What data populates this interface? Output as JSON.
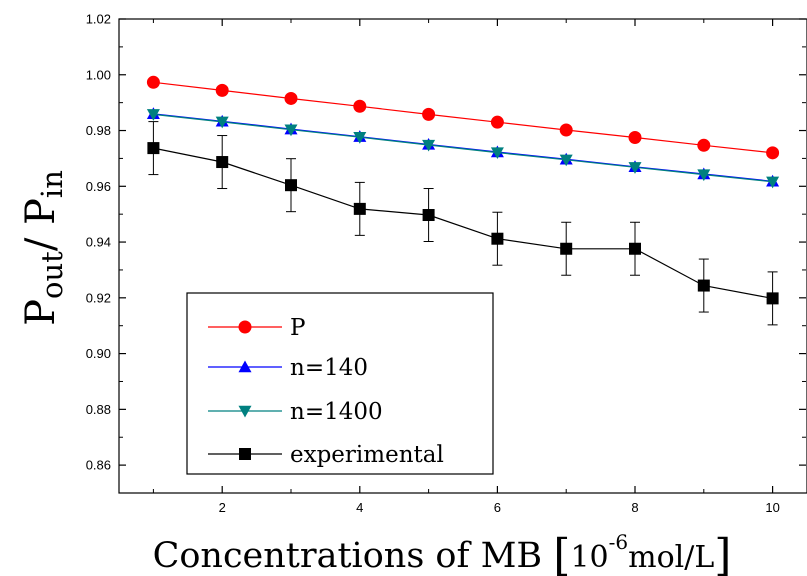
{
  "chart_data": {
    "type": "line",
    "xlabel_main": "Concentrations of MB ",
    "xlabel_unit_open": "[",
    "xlabel_unit_base": "10",
    "xlabel_unit_exp": "-6",
    "xlabel_unit_rest": "mol/L",
    "xlabel_unit_close": "]",
    "ylabel_top": "P",
    "ylabel_top_sub": "out",
    "ylabel_sep": "/ ",
    "ylabel_bottom": "P",
    "ylabel_bottom_sub": "in",
    "xlim": [
      0.5,
      10.5
    ],
    "ylim": [
      0.85,
      1.02
    ],
    "x_ticks": [
      2,
      4,
      6,
      8,
      10
    ],
    "x_tick_labels": [
      "2",
      "4",
      "6",
      "8",
      "10"
    ],
    "y_ticks": [
      0.86,
      0.88,
      0.9,
      0.92,
      0.94,
      0.96,
      0.98,
      1.0,
      1.02
    ],
    "y_tick_labels": [
      "0.86",
      "0.88",
      "0.90",
      "0.92",
      "0.94",
      "0.96",
      "0.98",
      "1.00",
      "1.02"
    ],
    "grid": false,
    "legend_position": "bottom-left",
    "x": [
      1,
      2,
      3,
      4,
      5,
      6,
      7,
      8,
      9,
      10
    ],
    "series": [
      {
        "name": "P",
        "marker": "circle",
        "color": "#ff0000",
        "line_color": "#ff0000",
        "values": [
          0.9973,
          0.9944,
          0.9915,
          0.9887,
          0.9858,
          0.983,
          0.9802,
          0.9775,
          0.9747,
          0.972
        ]
      },
      {
        "name": "n=140",
        "marker": "triangle-up",
        "color": "#0000ff",
        "line_color": "#0000ff",
        "values": [
          0.986,
          0.9833,
          0.9805,
          0.9778,
          0.975,
          0.9723,
          0.9697,
          0.967,
          0.9644,
          0.9618
        ]
      },
      {
        "name": "n=1400",
        "marker": "triangle-down",
        "color": "#008080",
        "line_color": "#008080",
        "values": [
          0.9858,
          0.9831,
          0.9803,
          0.9776,
          0.9748,
          0.9721,
          0.9695,
          0.9668,
          0.9642,
          0.9616
        ]
      },
      {
        "name": "experimental",
        "marker": "square",
        "color": "#000000",
        "line_color": "#000000",
        "values": [
          0.9737,
          0.9687,
          0.9604,
          0.9519,
          0.9497,
          0.9412,
          0.9376,
          0.9376,
          0.9244,
          0.9198
        ],
        "errors": [
          0.0095,
          0.0095,
          0.0095,
          0.0095,
          0.0095,
          0.0095,
          0.0095,
          0.0095,
          0.0095,
          0.0095
        ]
      }
    ]
  }
}
